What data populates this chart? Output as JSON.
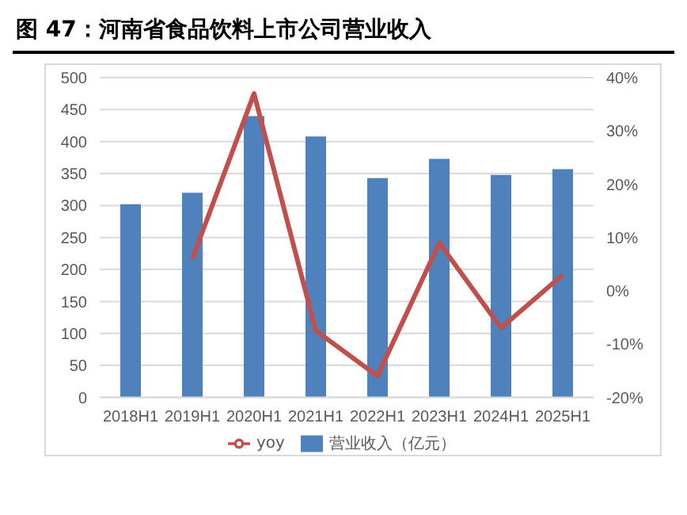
{
  "chart_data": {
    "type": "bar",
    "title": "图 47：河南省食品饮料上市公司营业收入",
    "categories": [
      "2018H1",
      "2019H1",
      "2020H1",
      "2021H1",
      "2022H1",
      "2023H1",
      "2024H1",
      "2025H1"
    ],
    "series": [
      {
        "name": "营业收入（亿元）",
        "color": "#4f81bd",
        "values": [
          302,
          320,
          440,
          408,
          343,
          373,
          348,
          357
        ]
      },
      {
        "name": "yoy",
        "type": "line",
        "axis": "y2",
        "color": "#c0504d",
        "values": [
          null,
          6,
          37,
          -7.5,
          -16,
          9,
          -7,
          3
        ]
      }
    ],
    "ylim": [
      0,
      500
    ],
    "yticks": [
      0,
      50,
      100,
      150,
      200,
      250,
      300,
      350,
      400,
      450,
      500
    ],
    "y2lim": [
      -20,
      40
    ],
    "y2ticks": [
      {
        "value": -20,
        "label": "-20%"
      },
      {
        "value": -10,
        "label": "-10%"
      },
      {
        "value": 0,
        "label": "0%"
      },
      {
        "value": 10,
        "label": "10%"
      },
      {
        "value": 20,
        "label": "20%"
      },
      {
        "value": 30,
        "label": "30%"
      },
      {
        "value": 40,
        "label": "40%"
      }
    ],
    "grid": "y",
    "legend": "bottom",
    "marker": "none"
  }
}
